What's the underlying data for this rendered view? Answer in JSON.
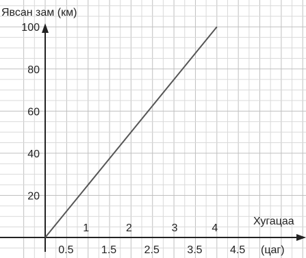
{
  "chart_data": {
    "type": "line",
    "ylabel": "Явсан зам (км)",
    "xlabel": "Хугацаа",
    "xunit": "(цаг)",
    "x_ticks_integer": [
      "1",
      "2",
      "3",
      "4"
    ],
    "x_ticks_half": [
      "0.5",
      "1.5",
      "2.5",
      "3.5",
      "4.5"
    ],
    "y_ticks": [
      "20",
      "40",
      "60",
      "80",
      "100"
    ],
    "xlim": [
      0,
      5
    ],
    "ylim": [
      0,
      100
    ],
    "grid": true,
    "series": [
      {
        "x": [
          0,
          4
        ],
        "y": [
          0,
          100
        ],
        "color": "#555555"
      }
    ]
  }
}
